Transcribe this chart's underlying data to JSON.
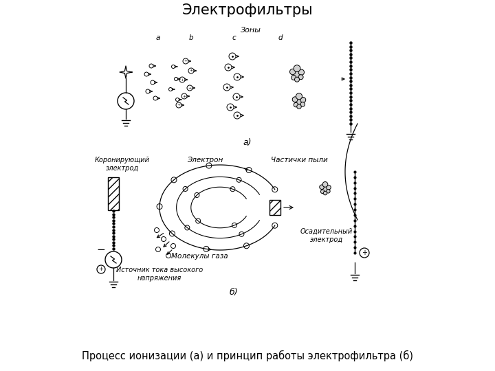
{
  "title": "Электрофильтры",
  "caption": "Процесс ионизации (а) и принцип работы электрофильтра (б)",
  "label_a": "а)",
  "label_b": "б)",
  "zones_label": "Зоны",
  "zone_labels": [
    "a",
    "b",
    "c",
    "d"
  ],
  "label_corona": "Коронирующий\nэлектрод",
  "label_electron": "Электрон",
  "label_dust": "Частички пыли",
  "label_gas": "Молекулы газа",
  "label_source": "Источник тока высокого\nнапряжения",
  "label_settling": "Осадительный\nэлектрод",
  "bg_color": "#ffffff",
  "line_color": "#000000"
}
